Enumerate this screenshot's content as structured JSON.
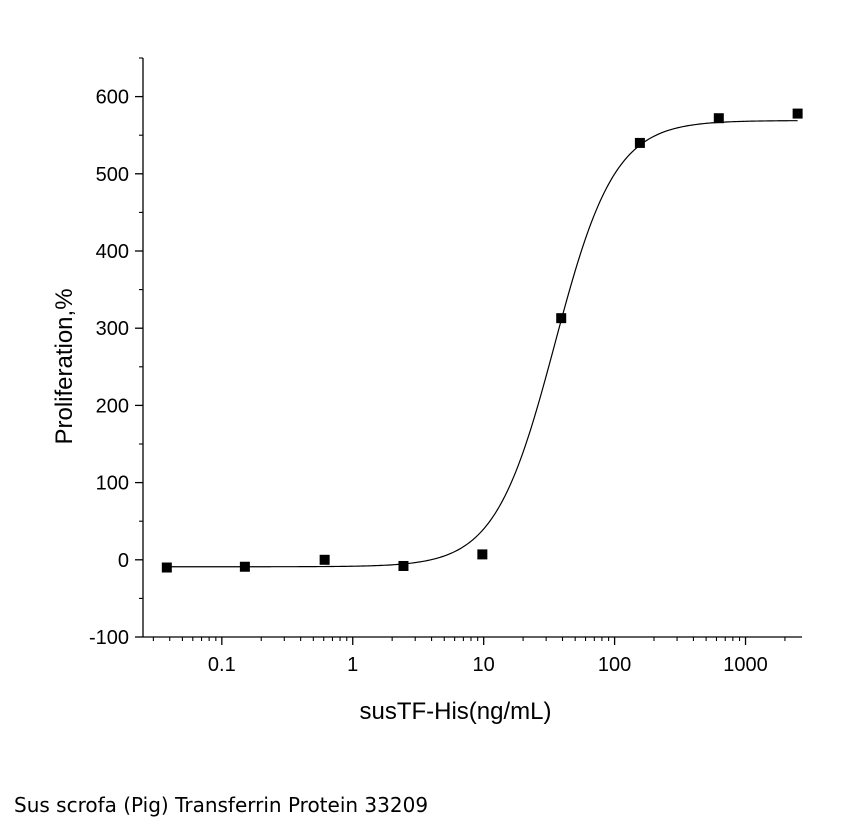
{
  "caption": "Sus scrofa (Pig) Transferrin Protein 33209",
  "chart_data": {
    "type": "scatter",
    "title": "",
    "xlabel": "susTF-His(ng/mL)",
    "ylabel": "Proliferation,%",
    "x_scale": "log",
    "xlim": [
      0.025,
      2700
    ],
    "ylim": [
      -100,
      650
    ],
    "x_ticks": [
      0.1,
      1,
      10,
      100,
      1000
    ],
    "x_tick_labels": [
      "0.1",
      "1",
      "10",
      "100",
      "1000"
    ],
    "y_ticks": [
      -100,
      0,
      100,
      200,
      300,
      400,
      500,
      600
    ],
    "y_tick_labels": [
      "-100",
      "0",
      "100",
      "200",
      "300",
      "400",
      "500",
      "600"
    ],
    "grid": false,
    "legend": "none",
    "marker": "square",
    "color": "#000000",
    "series": [
      {
        "x": [
          0.038,
          0.15,
          0.61,
          2.44,
          9.77,
          39.1,
          156,
          625,
          2500
        ],
        "y": [
          -10,
          -9,
          0,
          -8,
          7,
          313,
          540,
          572,
          578
        ]
      }
    ],
    "fit_curve": {
      "model": "4PL",
      "bottom": -9,
      "top": 569,
      "ec50": 35,
      "hill": 1.9
    }
  }
}
